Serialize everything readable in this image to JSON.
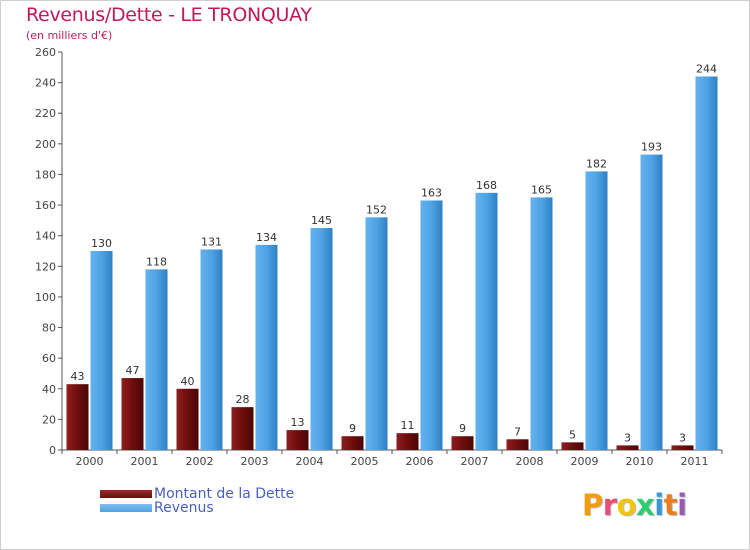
{
  "title": "Revenus/Dette - LE TRONQUAY",
  "subtitle": "(en milliers d'€)",
  "colors": {
    "dette": "#6e0d0d",
    "revenus": "#4fa3e3",
    "title": "#c2185b",
    "legend_text": "#4a5ec2"
  },
  "chart_data": {
    "type": "bar",
    "categories": [
      "2000",
      "2001",
      "2002",
      "2003",
      "2004",
      "2005",
      "2006",
      "2007",
      "2008",
      "2009",
      "2010",
      "2011"
    ],
    "series": [
      {
        "name": "Montant de la Dette",
        "values": [
          43,
          47,
          40,
          28,
          13,
          9,
          11,
          9,
          7,
          5,
          3,
          3
        ]
      },
      {
        "name": "Revenus",
        "values": [
          130,
          118,
          131,
          134,
          145,
          152,
          163,
          168,
          165,
          182,
          193,
          244
        ]
      }
    ],
    "yticks": [
      0,
      20,
      40,
      60,
      80,
      100,
      120,
      140,
      160,
      180,
      200,
      220,
      240,
      260
    ],
    "ylim": [
      0,
      260
    ],
    "grid": false,
    "legend_position": "bottom-left"
  },
  "legend": {
    "dette_label": "Montant de la Dette",
    "revenus_label": "Revenus"
  },
  "logo": {
    "letters": [
      "P",
      "r",
      "o",
      "x",
      "i",
      "t",
      "i"
    ],
    "letter_colors": [
      "#f39c12",
      "#e94e77",
      "#f1c40f",
      "#2ecc71",
      "#3498db",
      "#e67e22",
      "#9b59b6"
    ]
  }
}
